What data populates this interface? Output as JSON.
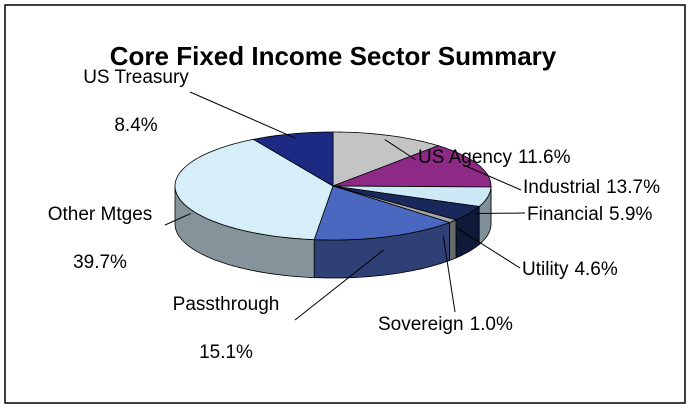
{
  "chart_data": {
    "type": "pie",
    "title": "Core Fixed Income Sector Summary",
    "categories": [
      "US Agency",
      "Industrial",
      "Financial",
      "Utility",
      "Sovereign",
      "Passthrough",
      "Other Mtges",
      "US Treasury"
    ],
    "values": [
      11.6,
      13.7,
      5.9,
      4.6,
      1.0,
      15.1,
      39.7,
      8.4
    ],
    "value_labels": [
      "11.6%",
      "13.7%",
      "5.9%",
      "4.6%",
      "1.0%",
      "15.1%",
      "39.7%",
      "8.4%"
    ],
    "colors": [
      "#c4c4c4",
      "#8e2a86",
      "#cde8f7",
      "#18285a",
      "#a8a8a8",
      "#4a68bf",
      "#d6eef8",
      "#1c2a84"
    ]
  }
}
